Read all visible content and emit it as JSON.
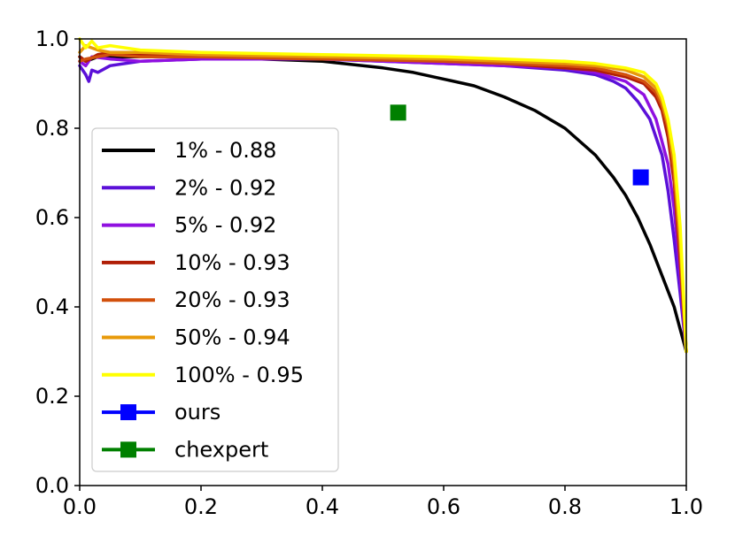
{
  "chart_data": {
    "type": "line",
    "title": "",
    "xlabel": "",
    "ylabel": "",
    "xlim": [
      0.0,
      1.0
    ],
    "ylim": [
      0.0,
      1.0
    ],
    "grid": false,
    "legend_position": "left-center",
    "x_ticks": [
      "0.0",
      "0.2",
      "0.4",
      "0.6",
      "0.8",
      "1.0"
    ],
    "y_ticks": [
      "0.0",
      "0.2",
      "0.4",
      "0.6",
      "0.8",
      "1.0"
    ],
    "series": [
      {
        "name": "1% - 0.88",
        "color": "#000000",
        "x": [
          0.0,
          0.01,
          0.03,
          0.06,
          0.1,
          0.2,
          0.3,
          0.4,
          0.5,
          0.55,
          0.6,
          0.65,
          0.7,
          0.75,
          0.8,
          0.85,
          0.88,
          0.9,
          0.92,
          0.94,
          0.96,
          0.98,
          0.99,
          1.0
        ],
        "y": [
          0.96,
          0.95,
          0.96,
          0.96,
          0.96,
          0.96,
          0.955,
          0.95,
          0.935,
          0.925,
          0.91,
          0.895,
          0.87,
          0.84,
          0.8,
          0.74,
          0.69,
          0.65,
          0.6,
          0.54,
          0.47,
          0.4,
          0.35,
          0.3
        ]
      },
      {
        "name": "2% - 0.92",
        "color": "#5b10d8",
        "x": [
          0.0,
          0.01,
          0.015,
          0.02,
          0.03,
          0.05,
          0.1,
          0.2,
          0.4,
          0.6,
          0.7,
          0.8,
          0.85,
          0.88,
          0.9,
          0.92,
          0.94,
          0.96,
          0.97,
          0.98,
          0.99,
          1.0
        ],
        "y": [
          0.94,
          0.92,
          0.905,
          0.93,
          0.925,
          0.94,
          0.95,
          0.955,
          0.955,
          0.945,
          0.94,
          0.93,
          0.92,
          0.905,
          0.89,
          0.86,
          0.82,
          0.74,
          0.66,
          0.55,
          0.43,
          0.3
        ]
      },
      {
        "name": "5% - 0.92",
        "color": "#9010e0",
        "x": [
          0.0,
          0.01,
          0.02,
          0.05,
          0.1,
          0.2,
          0.4,
          0.6,
          0.7,
          0.8,
          0.85,
          0.9,
          0.93,
          0.95,
          0.97,
          0.98,
          0.99,
          1.0
        ],
        "y": [
          0.95,
          0.94,
          0.96,
          0.955,
          0.95,
          0.955,
          0.955,
          0.945,
          0.94,
          0.935,
          0.925,
          0.905,
          0.875,
          0.82,
          0.72,
          0.62,
          0.47,
          0.3
        ]
      },
      {
        "name": "10% - 0.93",
        "color": "#b01e06",
        "x": [
          0.0,
          0.01,
          0.03,
          0.05,
          0.1,
          0.2,
          0.4,
          0.6,
          0.7,
          0.8,
          0.85,
          0.9,
          0.93,
          0.95,
          0.96,
          0.97,
          0.98,
          0.99,
          1.0
        ],
        "y": [
          0.96,
          0.95,
          0.965,
          0.97,
          0.965,
          0.965,
          0.96,
          0.95,
          0.945,
          0.935,
          0.93,
          0.915,
          0.9,
          0.87,
          0.84,
          0.78,
          0.68,
          0.5,
          0.3
        ]
      },
      {
        "name": "20% - 0.93",
        "color": "#d2500c",
        "x": [
          0.0,
          0.01,
          0.03,
          0.05,
          0.1,
          0.2,
          0.4,
          0.6,
          0.7,
          0.8,
          0.85,
          0.9,
          0.93,
          0.95,
          0.96,
          0.97,
          0.98,
          0.99,
          1.0
        ],
        "y": [
          0.95,
          0.955,
          0.96,
          0.965,
          0.96,
          0.96,
          0.955,
          0.95,
          0.945,
          0.94,
          0.935,
          0.92,
          0.905,
          0.88,
          0.85,
          0.8,
          0.7,
          0.52,
          0.3
        ]
      },
      {
        "name": "50% - 0.94",
        "color": "#e89a0a",
        "x": [
          0.0,
          0.01,
          0.03,
          0.05,
          0.1,
          0.2,
          0.4,
          0.6,
          0.7,
          0.8,
          0.85,
          0.9,
          0.93,
          0.95,
          0.96,
          0.97,
          0.98,
          0.99,
          1.0
        ],
        "y": [
          0.97,
          0.985,
          0.975,
          0.97,
          0.97,
          0.965,
          0.96,
          0.955,
          0.95,
          0.945,
          0.94,
          0.93,
          0.915,
          0.89,
          0.86,
          0.81,
          0.72,
          0.55,
          0.3
        ]
      },
      {
        "name": "100% - 0.95",
        "color": "#ffff00",
        "x": [
          0.0,
          0.005,
          0.01,
          0.02,
          0.03,
          0.05,
          0.1,
          0.2,
          0.4,
          0.6,
          0.7,
          0.8,
          0.85,
          0.9,
          0.93,
          0.95,
          0.96,
          0.97,
          0.98,
          0.99,
          1.0
        ],
        "y": [
          1.0,
          0.99,
          0.98,
          0.995,
          0.98,
          0.985,
          0.975,
          0.97,
          0.965,
          0.96,
          0.955,
          0.95,
          0.945,
          0.935,
          0.925,
          0.9,
          0.87,
          0.82,
          0.74,
          0.58,
          0.3
        ]
      }
    ],
    "points": [
      {
        "name": "ours",
        "color": "#0000ff",
        "x": 0.925,
        "y": 0.69
      },
      {
        "name": "chexpert",
        "color": "#008000",
        "x": 0.525,
        "y": 0.835
      }
    ]
  }
}
